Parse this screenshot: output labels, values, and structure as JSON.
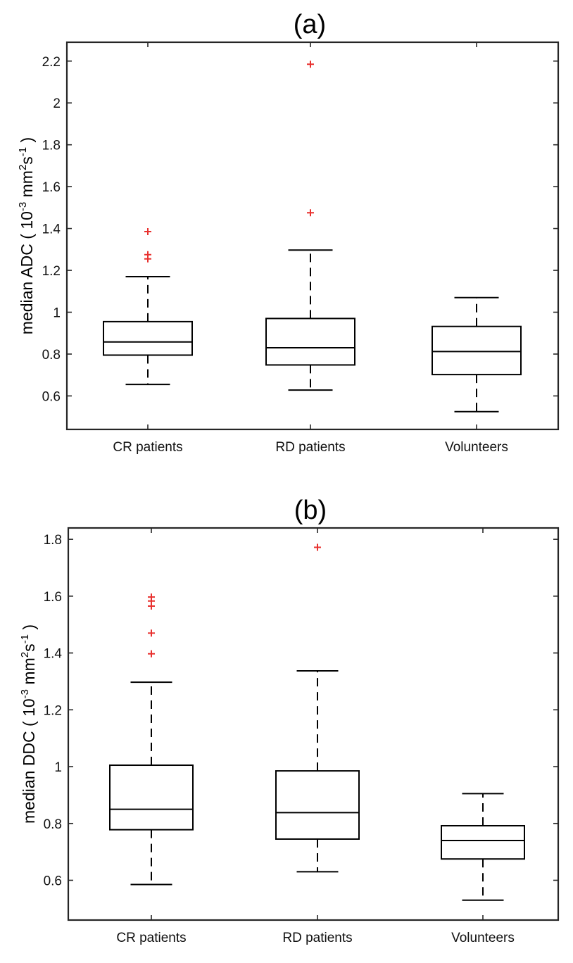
{
  "chart_data": [
    {
      "type": "boxplot",
      "title": "(a)",
      "ylabel": {
        "prefix": "median ADC ( 10",
        "exp1": "-3",
        "mid": " mm",
        "exp2": "2",
        "mid2": "s",
        "exp3": "-1",
        "suffix": " )"
      },
      "ylim": [
        0.44,
        2.29
      ],
      "yticks": [
        0.6,
        0.8,
        1,
        1.2,
        1.4,
        1.6,
        1.8,
        2,
        2.2
      ],
      "ytick_labels": [
        "0.6",
        "0.8",
        "1",
        "1.2",
        "1.4",
        "1.6",
        "1.8",
        "2",
        "2.2"
      ],
      "categories": [
        "CR patients",
        "RD patients",
        "Volunteers"
      ],
      "groups": [
        {
          "name": "CR patients",
          "whisker_low": 0.655,
          "q1": 0.795,
          "median": 0.858,
          "q3": 0.955,
          "whisker_high": 1.17,
          "outliers": [
            1.255,
            1.275,
            1.385
          ]
        },
        {
          "name": "RD patients",
          "whisker_low": 0.628,
          "q1": 0.748,
          "median": 0.83,
          "q3": 0.97,
          "whisker_high": 1.297,
          "outliers": [
            1.475,
            2.185
          ]
        },
        {
          "name": "Volunteers",
          "whisker_low": 0.525,
          "q1": 0.702,
          "median": 0.812,
          "q3": 0.932,
          "whisker_high": 1.07,
          "outliers": []
        }
      ]
    },
    {
      "type": "boxplot",
      "title": "(b)",
      "ylabel": {
        "prefix": "median DDC ( 10",
        "exp1": "-3",
        "mid": " mm",
        "exp2": "2",
        "mid2": "s",
        "exp3": "-1",
        "suffix": " )"
      },
      "ylim": [
        0.46,
        1.84
      ],
      "yticks": [
        0.6,
        0.8,
        1,
        1.2,
        1.4,
        1.6,
        1.8
      ],
      "ytick_labels": [
        "0.6",
        "0.8",
        "1",
        "1.2",
        "1.4",
        "1.6",
        "1.8"
      ],
      "categories": [
        "CR patients",
        "RD patients",
        "Volunteers"
      ],
      "groups": [
        {
          "name": "CR patients",
          "whisker_low": 0.585,
          "q1": 0.778,
          "median": 0.85,
          "q3": 1.005,
          "whisker_high": 1.297,
          "outliers": [
            1.397,
            1.47,
            1.565,
            1.583,
            1.597
          ]
        },
        {
          "name": "RD patients",
          "whisker_low": 0.63,
          "q1": 0.745,
          "median": 0.838,
          "q3": 0.985,
          "whisker_high": 1.337,
          "outliers": [
            1.772
          ]
        },
        {
          "name": "Volunteers",
          "whisker_low": 0.53,
          "q1": 0.675,
          "median": 0.74,
          "q3": 0.792,
          "whisker_high": 0.905,
          "outliers": []
        }
      ]
    }
  ]
}
